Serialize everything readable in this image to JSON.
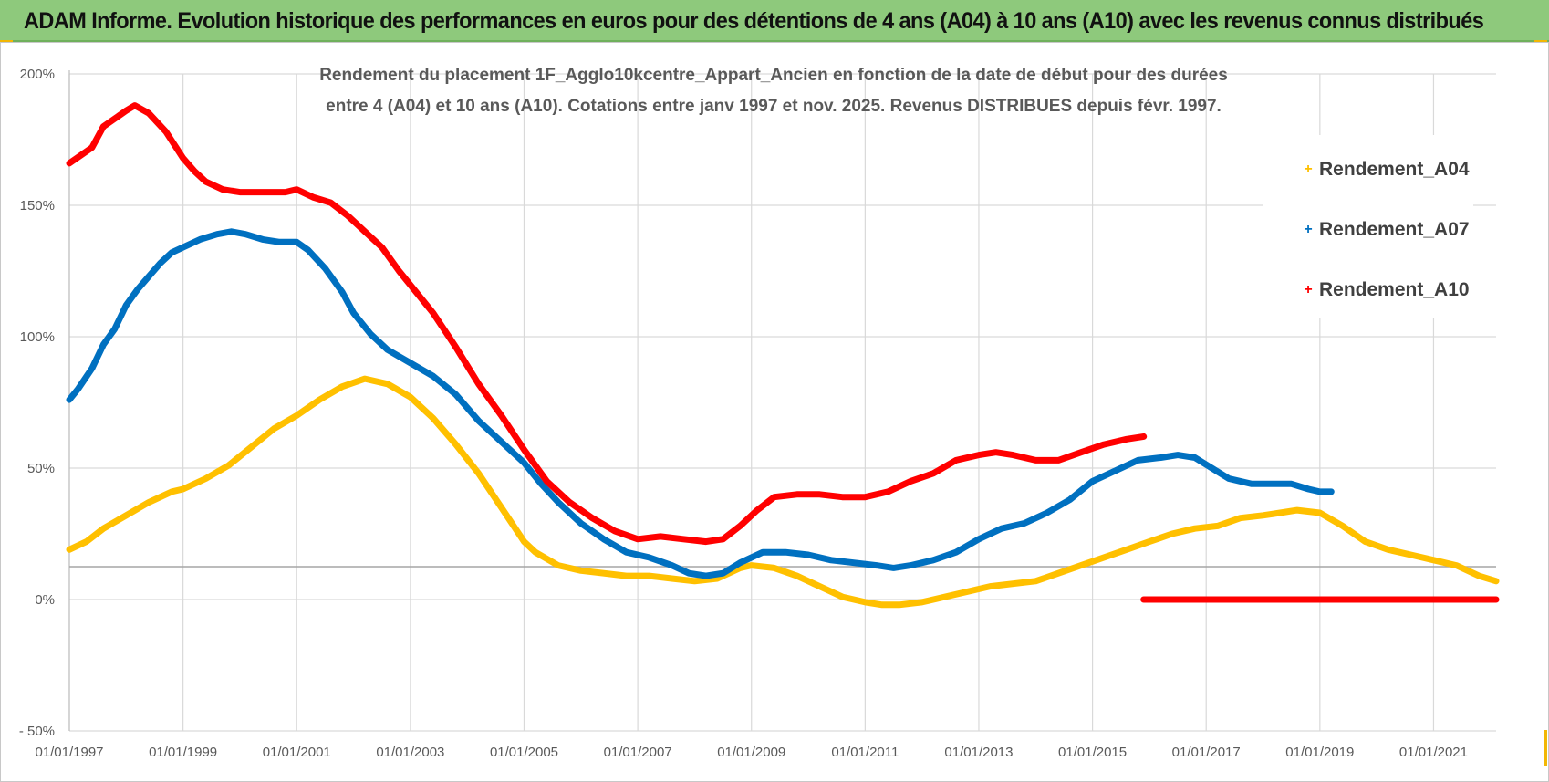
{
  "header": {
    "title": "ADAM Informe. Evolution historique des performances en euros pour des détentions de 4 ans (A04) à 10 ans (A10) avec les revenus connus distribués"
  },
  "colors": {
    "banner": "#8ec97c",
    "a04": "#FFC000",
    "a07": "#0070C0",
    "a10": "#FF0000",
    "grid": "#d9d9d9"
  },
  "chart_data": {
    "type": "line",
    "title_lines": [
      "Rendement du placement 1F_Agglo10kcentre_Appart_Ancien en fonction de la date de début pour des durées",
      "entre 4 (A04) et 10 ans (A10). Cotations entre janv 1997 et nov. 2025. Revenus DISTRIBUES depuis févr. 1997."
    ],
    "xlabel": "",
    "ylabel": "",
    "x_range": [
      1997.0,
      2022.1
    ],
    "ylim": [
      -50,
      200
    ],
    "y_ticks": [
      200,
      150,
      100,
      50,
      0,
      -50
    ],
    "y_tick_labels": [
      "200%",
      "150%",
      "100%",
      "50%",
      "0%",
      "- 50%"
    ],
    "x_ticks": [
      1997,
      1999,
      2001,
      2003,
      2005,
      2007,
      2009,
      2011,
      2013,
      2015,
      2017,
      2019,
      2021
    ],
    "x_tick_labels": [
      "01/01/1997",
      "01/01/1999",
      "01/01/2001",
      "01/01/2003",
      "01/01/2005",
      "01/01/2007",
      "01/01/2009",
      "01/01/2011",
      "01/01/2013",
      "01/01/2015",
      "01/01/2017",
      "01/01/2019",
      "01/01/2021"
    ],
    "reference_line_y": 12.5,
    "legend_position": "right",
    "series": [
      {
        "name": "Rendement_A04",
        "color": "#FFC000",
        "points": [
          [
            1997.0,
            19
          ],
          [
            1997.3,
            22
          ],
          [
            1997.6,
            27
          ],
          [
            1998.0,
            32
          ],
          [
            1998.4,
            37
          ],
          [
            1998.8,
            41
          ],
          [
            1999.0,
            42
          ],
          [
            1999.4,
            46
          ],
          [
            1999.8,
            51
          ],
          [
            2000.2,
            58
          ],
          [
            2000.6,
            65
          ],
          [
            2001.0,
            70
          ],
          [
            2001.4,
            76
          ],
          [
            2001.8,
            81
          ],
          [
            2002.2,
            84
          ],
          [
            2002.6,
            82
          ],
          [
            2003.0,
            77
          ],
          [
            2003.4,
            69
          ],
          [
            2003.8,
            59
          ],
          [
            2004.2,
            48
          ],
          [
            2004.6,
            35
          ],
          [
            2005.0,
            22
          ],
          [
            2005.2,
            18
          ],
          [
            2005.6,
            13
          ],
          [
            2006.0,
            11
          ],
          [
            2006.4,
            10
          ],
          [
            2006.8,
            9
          ],
          [
            2007.2,
            9
          ],
          [
            2007.6,
            8
          ],
          [
            2008.0,
            7
          ],
          [
            2008.4,
            8
          ],
          [
            2008.8,
            12
          ],
          [
            2009.0,
            13
          ],
          [
            2009.4,
            12
          ],
          [
            2009.8,
            9
          ],
          [
            2010.2,
            5
          ],
          [
            2010.6,
            1
          ],
          [
            2011.0,
            -1
          ],
          [
            2011.3,
            -2
          ],
          [
            2011.6,
            -2
          ],
          [
            2012.0,
            -1
          ],
          [
            2012.4,
            1
          ],
          [
            2012.8,
            3
          ],
          [
            2013.2,
            5
          ],
          [
            2013.6,
            6
          ],
          [
            2014.0,
            7
          ],
          [
            2014.4,
            10
          ],
          [
            2014.8,
            13
          ],
          [
            2015.2,
            16
          ],
          [
            2015.6,
            19
          ],
          [
            2016.0,
            22
          ],
          [
            2016.4,
            25
          ],
          [
            2016.8,
            27
          ],
          [
            2017.2,
            28
          ],
          [
            2017.6,
            31
          ],
          [
            2018.0,
            32
          ],
          [
            2018.3,
            33
          ],
          [
            2018.6,
            34
          ],
          [
            2019.0,
            33
          ],
          [
            2019.4,
            28
          ],
          [
            2019.8,
            22
          ],
          [
            2020.2,
            19
          ],
          [
            2020.6,
            17
          ],
          [
            2021.0,
            15
          ],
          [
            2021.4,
            13
          ],
          [
            2021.8,
            9
          ],
          [
            2022.1,
            7
          ]
        ]
      },
      {
        "name": "Rendement_A07",
        "color": "#0070C0",
        "points": [
          [
            1997.0,
            76
          ],
          [
            1997.15,
            80
          ],
          [
            1997.4,
            88
          ],
          [
            1997.6,
            97
          ],
          [
            1997.8,
            103
          ],
          [
            1998.0,
            112
          ],
          [
            1998.2,
            118
          ],
          [
            1998.4,
            123
          ],
          [
            1998.6,
            128
          ],
          [
            1998.8,
            132
          ],
          [
            1999.0,
            134
          ],
          [
            1999.3,
            137
          ],
          [
            1999.6,
            139
          ],
          [
            1999.85,
            140
          ],
          [
            2000.1,
            139
          ],
          [
            2000.4,
            137
          ],
          [
            2000.7,
            136
          ],
          [
            2001.0,
            136
          ],
          [
            2001.2,
            133
          ],
          [
            2001.5,
            126
          ],
          [
            2001.8,
            117
          ],
          [
            2002.0,
            109
          ],
          [
            2002.3,
            101
          ],
          [
            2002.6,
            95
          ],
          [
            2003.0,
            90
          ],
          [
            2003.4,
            85
          ],
          [
            2003.8,
            78
          ],
          [
            2004.2,
            68
          ],
          [
            2004.6,
            60
          ],
          [
            2005.0,
            52
          ],
          [
            2005.3,
            44
          ],
          [
            2005.6,
            37
          ],
          [
            2006.0,
            29
          ],
          [
            2006.4,
            23
          ],
          [
            2006.8,
            18
          ],
          [
            2007.2,
            16
          ],
          [
            2007.6,
            13
          ],
          [
            2007.9,
            10
          ],
          [
            2008.2,
            9
          ],
          [
            2008.5,
            10
          ],
          [
            2008.8,
            14
          ],
          [
            2009.2,
            18
          ],
          [
            2009.6,
            18
          ],
          [
            2010.0,
            17
          ],
          [
            2010.4,
            15
          ],
          [
            2010.8,
            14
          ],
          [
            2011.2,
            13
          ],
          [
            2011.5,
            12
          ],
          [
            2011.8,
            13
          ],
          [
            2012.2,
            15
          ],
          [
            2012.6,
            18
          ],
          [
            2013.0,
            23
          ],
          [
            2013.4,
            27
          ],
          [
            2013.8,
            29
          ],
          [
            2014.2,
            33
          ],
          [
            2014.6,
            38
          ],
          [
            2015.0,
            45
          ],
          [
            2015.4,
            49
          ],
          [
            2015.8,
            53
          ],
          [
            2016.2,
            54
          ],
          [
            2016.5,
            55
          ],
          [
            2016.8,
            54
          ],
          [
            2017.1,
            50
          ],
          [
            2017.4,
            46
          ],
          [
            2017.8,
            44
          ],
          [
            2018.2,
            44
          ],
          [
            2018.5,
            44
          ],
          [
            2018.8,
            42
          ],
          [
            2019.0,
            41
          ],
          [
            2019.2,
            41
          ]
        ]
      },
      {
        "name": "Rendement_A10",
        "color": "#FF0000",
        "points": [
          [
            1997.0,
            166
          ],
          [
            1997.2,
            169
          ],
          [
            1997.4,
            172
          ],
          [
            1997.6,
            180
          ],
          [
            1997.8,
            183
          ],
          [
            1998.0,
            186
          ],
          [
            1998.15,
            188
          ],
          [
            1998.4,
            185
          ],
          [
            1998.7,
            178
          ],
          [
            1999.0,
            168
          ],
          [
            1999.2,
            163
          ],
          [
            1999.4,
            159
          ],
          [
            1999.7,
            156
          ],
          [
            2000.0,
            155
          ],
          [
            2000.4,
            155
          ],
          [
            2000.8,
            155
          ],
          [
            2001.0,
            156
          ],
          [
            2001.3,
            153
          ],
          [
            2001.6,
            151
          ],
          [
            2001.9,
            146
          ],
          [
            2002.2,
            140
          ],
          [
            2002.5,
            134
          ],
          [
            2002.8,
            125
          ],
          [
            2003.1,
            117
          ],
          [
            2003.4,
            109
          ],
          [
            2003.8,
            96
          ],
          [
            2004.2,
            82
          ],
          [
            2004.6,
            70
          ],
          [
            2005.0,
            57
          ],
          [
            2005.4,
            45
          ],
          [
            2005.8,
            37
          ],
          [
            2006.2,
            31
          ],
          [
            2006.6,
            26
          ],
          [
            2007.0,
            23
          ],
          [
            2007.4,
            24
          ],
          [
            2007.8,
            23
          ],
          [
            2008.2,
            22
          ],
          [
            2008.5,
            23
          ],
          [
            2008.8,
            28
          ],
          [
            2009.1,
            34
          ],
          [
            2009.4,
            39
          ],
          [
            2009.8,
            40
          ],
          [
            2010.2,
            40
          ],
          [
            2010.6,
            39
          ],
          [
            2011.0,
            39
          ],
          [
            2011.4,
            41
          ],
          [
            2011.8,
            45
          ],
          [
            2012.2,
            48
          ],
          [
            2012.6,
            53
          ],
          [
            2013.0,
            55
          ],
          [
            2013.3,
            56
          ],
          [
            2013.6,
            55
          ],
          [
            2014.0,
            53
          ],
          [
            2014.4,
            53
          ],
          [
            2014.8,
            56
          ],
          [
            2015.2,
            59
          ],
          [
            2015.6,
            61
          ],
          [
            2015.9,
            62
          ]
        ]
      },
      {
        "name": "Rendement_A10",
        "color": "#FF0000",
        "points": [
          [
            2015.9,
            0
          ],
          [
            2022.1,
            0
          ]
        ]
      }
    ]
  }
}
